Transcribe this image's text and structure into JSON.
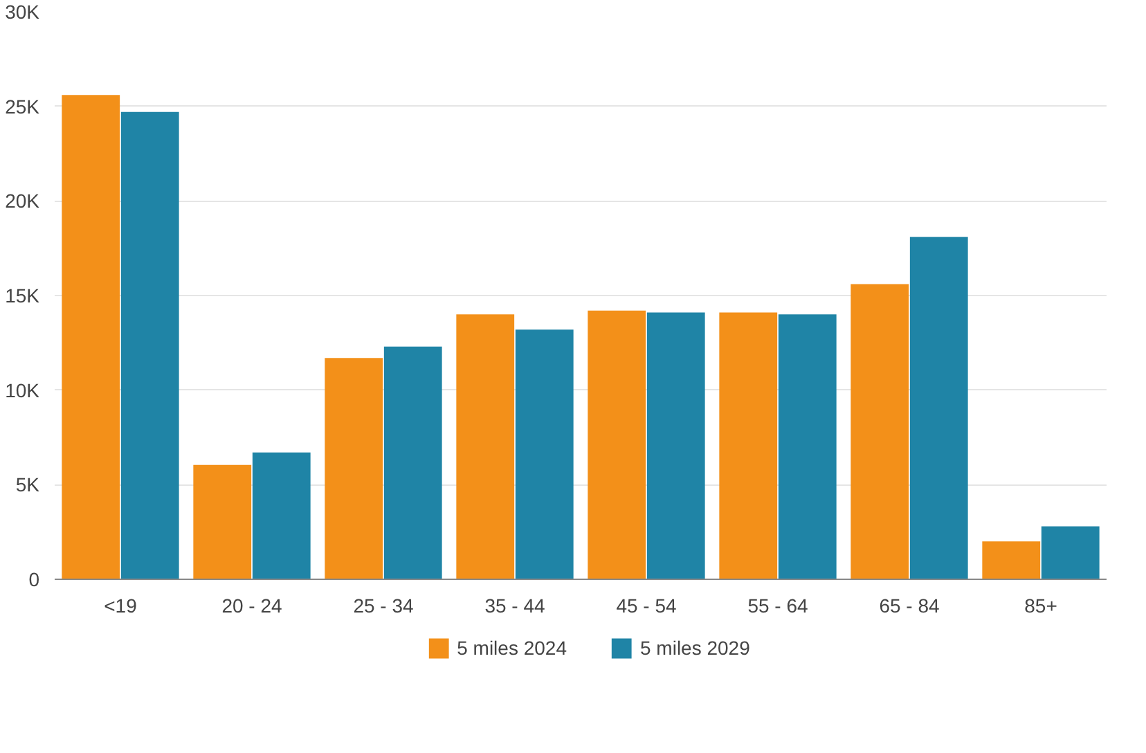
{
  "chart_data": {
    "type": "bar",
    "categories": [
      "<19",
      "20 - 24",
      "25 - 34",
      "35 - 44",
      "45 - 54",
      "55 - 64",
      "65 - 84",
      "85+"
    ],
    "series": [
      {
        "name": "5 miles 2024",
        "color": "#f39019",
        "values": [
          25600,
          6050,
          11700,
          14000,
          14200,
          14100,
          15600,
          2000
        ]
      },
      {
        "name": "5 miles 2029",
        "color": "#1f84a6",
        "values": [
          24700,
          6700,
          12300,
          13200,
          14100,
          14000,
          18100,
          2800
        ]
      }
    ],
    "ylim": [
      0,
      30000
    ],
    "yticks": [
      {
        "value": 0,
        "label": "0"
      },
      {
        "value": 5000,
        "label": "5K"
      },
      {
        "value": 10000,
        "label": "10K"
      },
      {
        "value": 15000,
        "label": "15K"
      },
      {
        "value": 20000,
        "label": "20K"
      },
      {
        "value": 25000,
        "label": "25K"
      },
      {
        "value": 30000,
        "label": "30K"
      }
    ],
    "grid": "y",
    "legend": "bottom"
  }
}
